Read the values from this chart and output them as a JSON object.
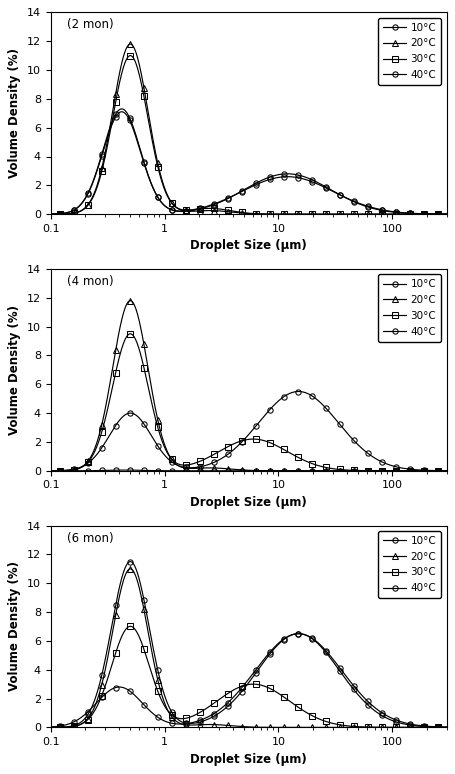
{
  "panels": [
    {
      "label": "(2 mon)",
      "xlabel": "Droplet Size (μm)",
      "ylabel": "Volume Density (%)",
      "ylim": [
        0,
        14
      ],
      "yticks": [
        0,
        2,
        4,
        6,
        8,
        10,
        12,
        14
      ],
      "xlim_log": [
        0.1,
        300
      ]
    },
    {
      "label": "(4 mon)",
      "xlabel": "Droplet Size (μm)",
      "ylabel": "Volume Density (%)",
      "ylim": [
        0,
        14
      ],
      "yticks": [
        0,
        2,
        4,
        6,
        8,
        10,
        12,
        14
      ],
      "xlim_log": [
        0.1,
        300
      ]
    },
    {
      "label": "(6 mon)",
      "xlabel": "Droplet Size (μm)",
      "ylabel": "Volume Density (%)",
      "ylim": [
        0,
        14
      ],
      "yticks": [
        0,
        2,
        4,
        6,
        8,
        10,
        12,
        14
      ],
      "xlim_log": [
        0.1,
        300
      ]
    }
  ],
  "legend_labels": [
    "10°C",
    "20°C",
    "30°C",
    "40°C"
  ],
  "markers": [
    "o",
    "^",
    "s",
    "o"
  ],
  "colors": [
    "black",
    "black",
    "black",
    "black"
  ],
  "linestyles": [
    "-",
    "-",
    "-",
    "-"
  ]
}
